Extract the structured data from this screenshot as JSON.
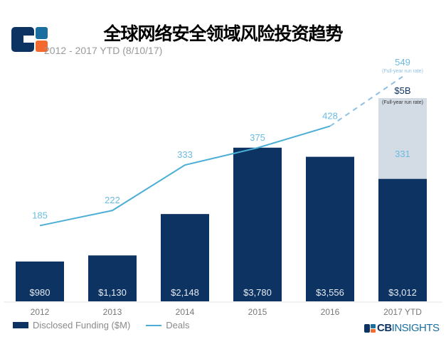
{
  "chart_data": {
    "type": "bar+line",
    "title": "全球网络安全领域风险投资趋势",
    "subtitle": "2012 - 2017 YTD (8/10/17)",
    "categories": [
      "2012",
      "2013",
      "2014",
      "2015",
      "2016",
      "2017 YTD"
    ],
    "series": [
      {
        "name": "Disclosed Funding ($M)",
        "type": "bar",
        "values": [
          980,
          1130,
          2148,
          3780,
          3556,
          3012
        ],
        "labels": [
          "$980",
          "$1,130",
          "$2,148",
          "$3,780",
          "$3,556",
          "$3,012"
        ],
        "color": "#0d3362"
      },
      {
        "name": "Deals",
        "type": "line",
        "values": [
          185,
          222,
          333,
          375,
          428,
          331
        ],
        "color": "#4aaed6"
      }
    ],
    "projection": {
      "funding_value": 5000,
      "funding_label": "$5B",
      "funding_note": "(Full-year run rate)",
      "deals_value": 549,
      "deals_label": "549",
      "deals_note": "(Full-year run rate)",
      "funding_color": "#d3dbe5"
    },
    "legend_position": "bottom-left",
    "grid": false
  },
  "brand": {
    "cb": "CB",
    "insights": "INSIGHTS",
    "logo_colors": [
      "#0d3362",
      "#1a6fa0",
      "#f26a2e"
    ]
  }
}
